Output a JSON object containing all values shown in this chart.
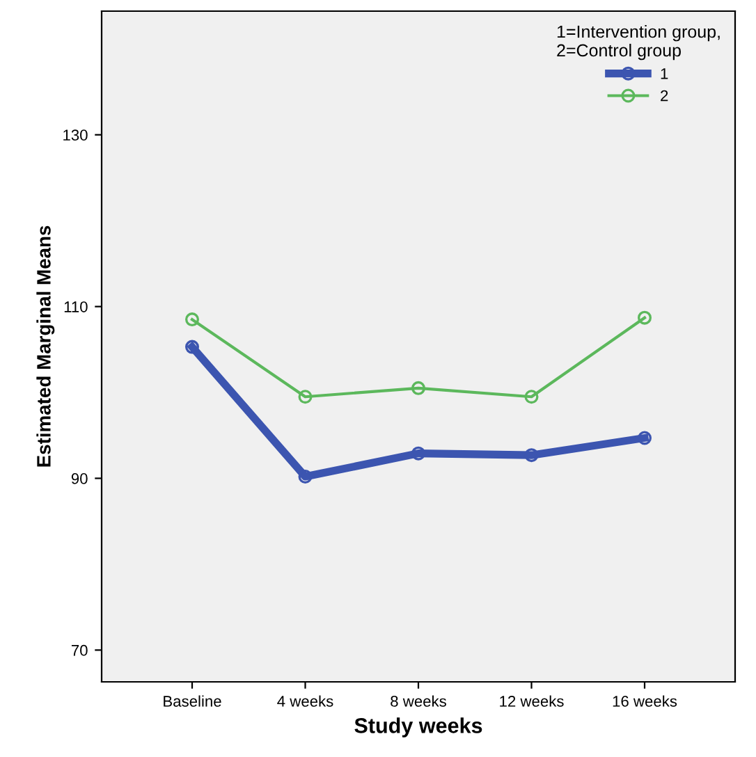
{
  "chart_data": {
    "type": "line",
    "xlabel": "Study weeks",
    "ylabel": "Estimated Marginal Means",
    "legend_title": "1=Intervention group,\n2=Control group",
    "categories": [
      "Baseline",
      "4 weeks",
      "8 weeks",
      "12 weeks",
      "16 weeks"
    ],
    "series": [
      {
        "name": "1",
        "color": "#3c55b0",
        "values": [
          105.3,
          90.2,
          92.9,
          92.7,
          94.7
        ]
      },
      {
        "name": "2",
        "color": "#5cb85c",
        "values": [
          108.5,
          99.5,
          100.5,
          99.5,
          108.7
        ]
      }
    ],
    "ylim": [
      66.3,
      144.4
    ],
    "yticks": [
      70,
      90,
      110,
      130
    ],
    "grid": false,
    "legend": "top right",
    "marker": "circle",
    "line_style": "solid"
  }
}
